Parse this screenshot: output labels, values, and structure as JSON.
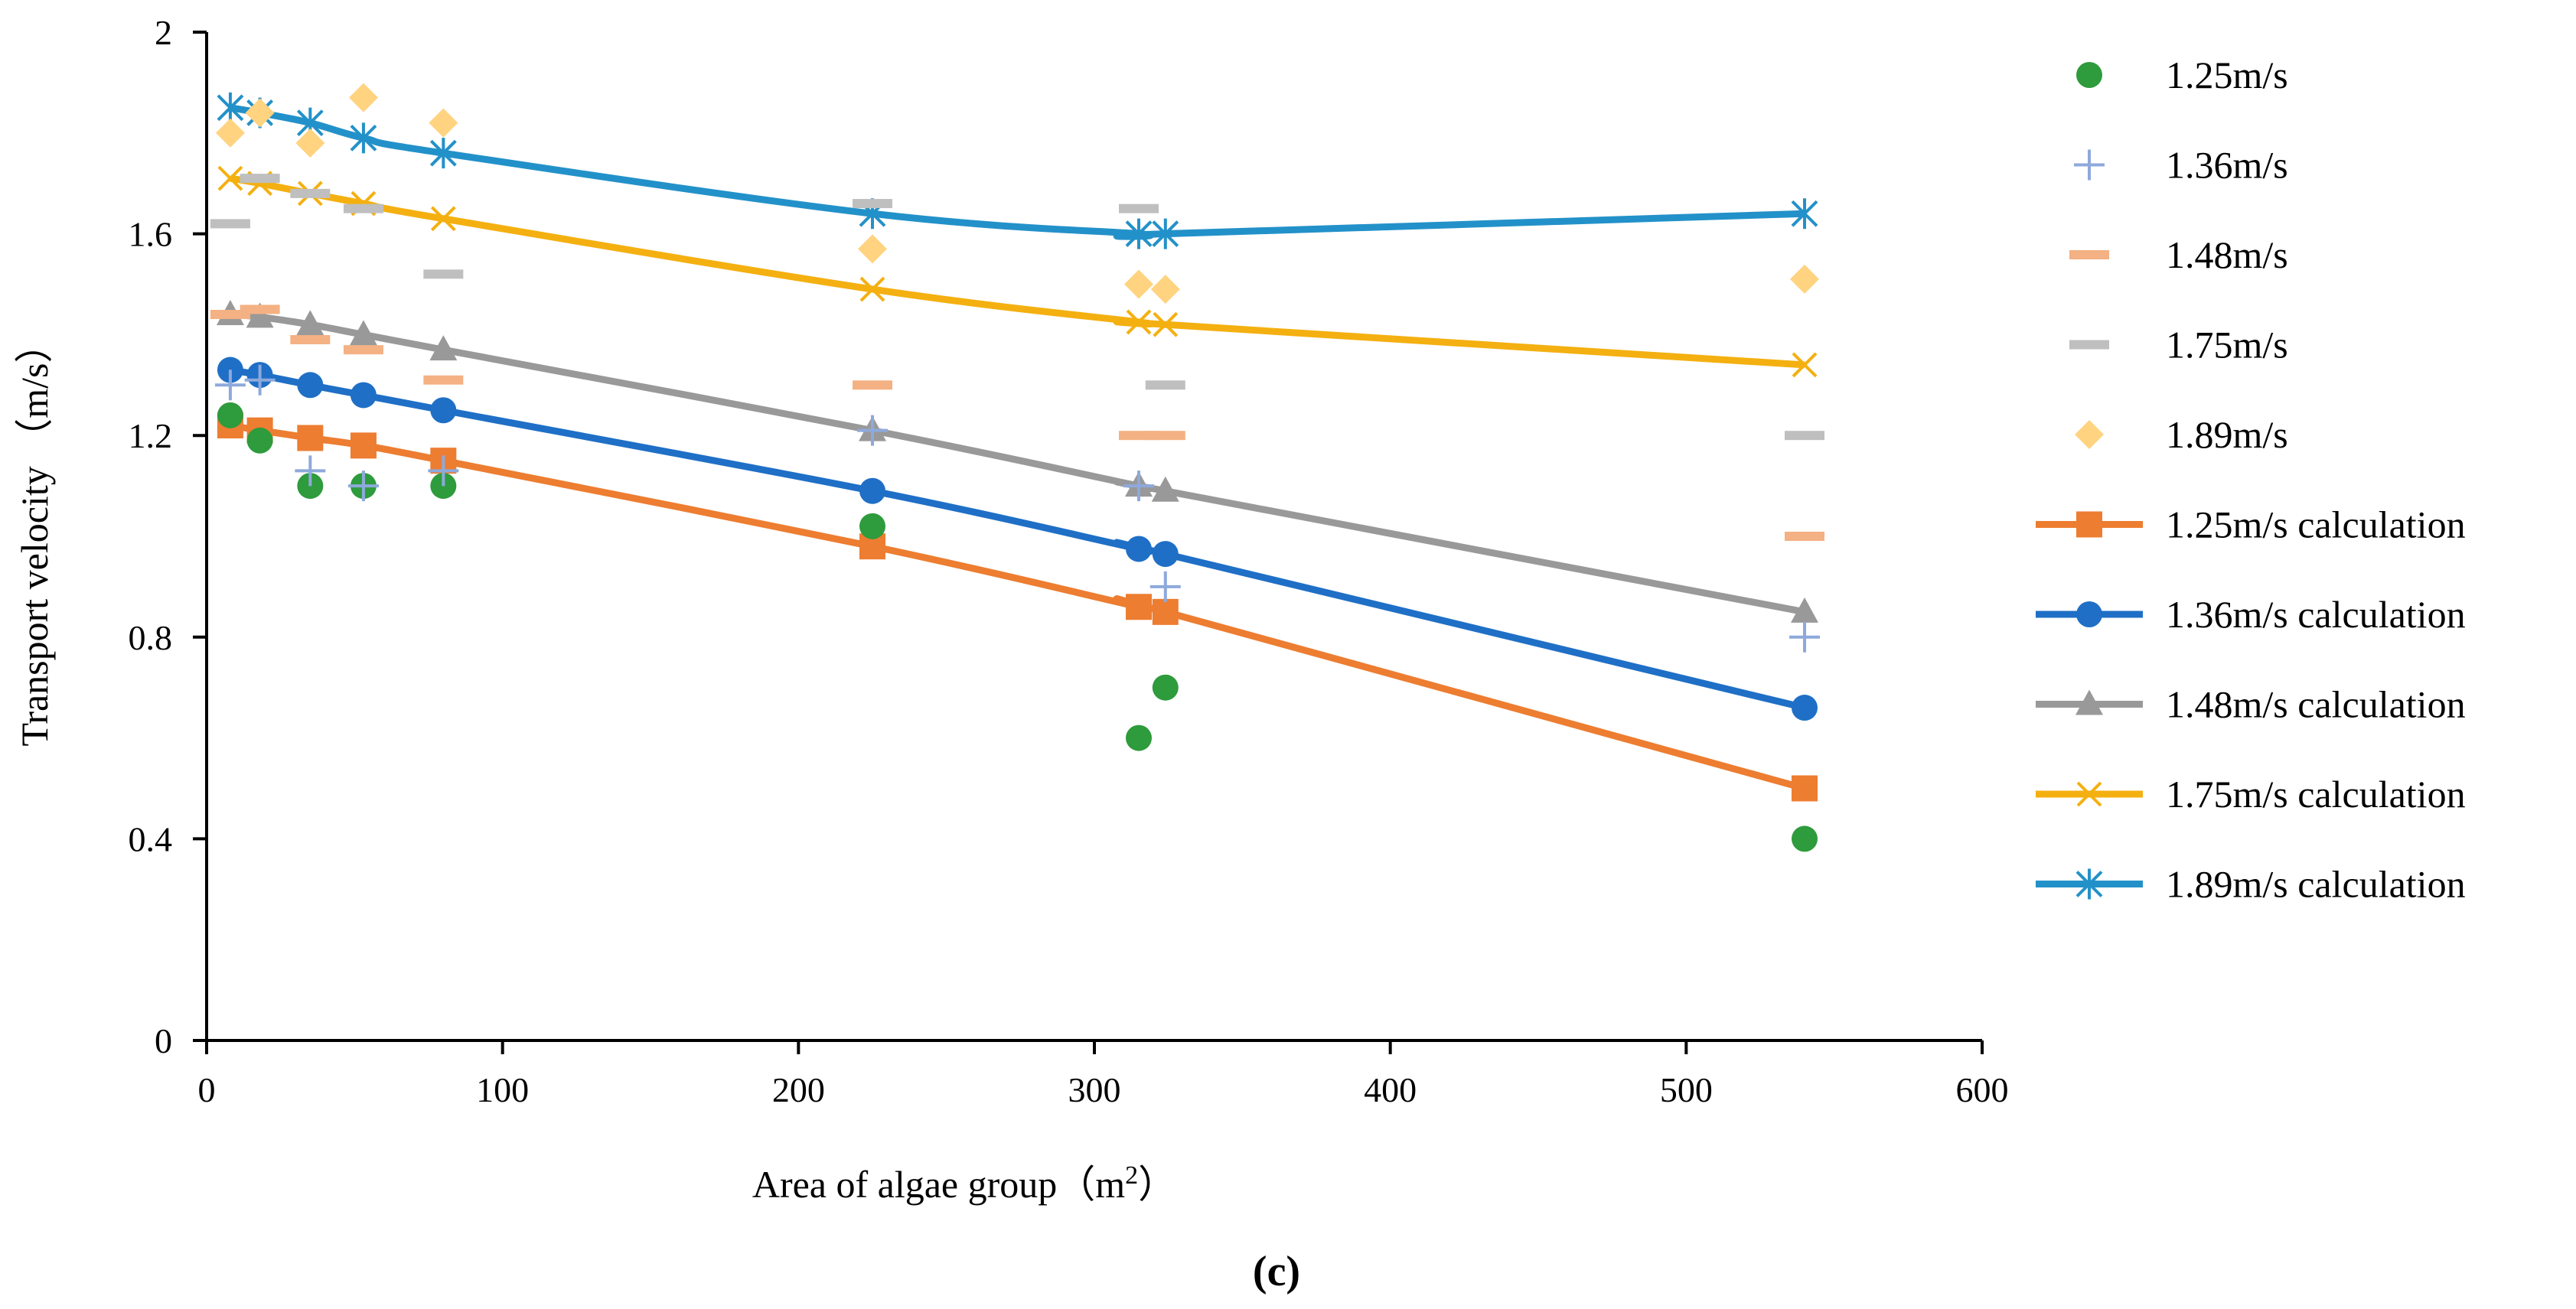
{
  "chart_data": {
    "type": "scatter",
    "xlabel": "Area of algae group（m²）",
    "xlabel_main": "Area of algae group（m",
    "xlabel_sup": "2",
    "xlabel_close": "）",
    "ylabel": "Transport velocity （m/s）",
    "panel_label": "(c)",
    "xlim": [
      0,
      600
    ],
    "ylim": [
      0,
      2
    ],
    "x_ticks": [
      0,
      100,
      200,
      300,
      400,
      500,
      600
    ],
    "x_tick_labels": [
      "0",
      "100",
      "200",
      "300",
      "400",
      "500",
      "600"
    ],
    "y_ticks": [
      0,
      0.4,
      0.8,
      1.2,
      1.6,
      2
    ],
    "y_tick_labels": [
      "0",
      "0.4",
      "0.8",
      "1.2",
      "1.6",
      "2"
    ],
    "legend_position": "right",
    "series": [
      {
        "name": "1.25m/s",
        "kind": "scatter",
        "marker": "circle",
        "color": "#2e9b3c",
        "points": [
          [
            8,
            1.24
          ],
          [
            18,
            1.19
          ],
          [
            35,
            1.1
          ],
          [
            53,
            1.1
          ],
          [
            80,
            1.1
          ],
          [
            225,
            1.02
          ],
          [
            315,
            0.6
          ],
          [
            324,
            0.7
          ],
          [
            540,
            0.4
          ]
        ]
      },
      {
        "name": "1.36m/s",
        "kind": "scatter",
        "marker": "plus",
        "color": "#8ea9db",
        "points": [
          [
            8,
            1.3
          ],
          [
            18,
            1.31
          ],
          [
            35,
            1.13
          ],
          [
            53,
            1.1
          ],
          [
            80,
            1.13
          ],
          [
            225,
            1.21
          ],
          [
            315,
            1.1
          ],
          [
            324,
            0.9
          ],
          [
            540,
            0.8
          ]
        ]
      },
      {
        "name": "1.48m/s",
        "kind": "scatter",
        "marker": "dash",
        "color": "#f4b183",
        "points": [
          [
            8,
            1.44
          ],
          [
            18,
            1.45
          ],
          [
            35,
            1.39
          ],
          [
            53,
            1.37
          ],
          [
            80,
            1.31
          ],
          [
            225,
            1.3
          ],
          [
            315,
            1.2
          ],
          [
            324,
            1.2
          ],
          [
            540,
            1.0
          ]
        ]
      },
      {
        "name": "1.75m/s",
        "kind": "scatter",
        "marker": "dash",
        "color": "#bfbfbf",
        "points": [
          [
            8,
            1.62
          ],
          [
            18,
            1.71
          ],
          [
            35,
            1.68
          ],
          [
            53,
            1.65
          ],
          [
            80,
            1.52
          ],
          [
            225,
            1.66
          ],
          [
            315,
            1.65
          ],
          [
            324,
            1.3
          ],
          [
            540,
            1.2
          ]
        ]
      },
      {
        "name": "1.89m/s",
        "kind": "scatter",
        "marker": "diamond",
        "color": "#ffd380",
        "points": [
          [
            8,
            1.8
          ],
          [
            18,
            1.84
          ],
          [
            35,
            1.78
          ],
          [
            53,
            1.87
          ],
          [
            80,
            1.82
          ],
          [
            225,
            1.57
          ],
          [
            315,
            1.5
          ],
          [
            324,
            1.49
          ],
          [
            540,
            1.51
          ]
        ]
      },
      {
        "name": "1.25m/s calculation",
        "kind": "line",
        "marker": "square",
        "color": "#ed7d31",
        "points": [
          [
            8,
            1.22
          ],
          [
            18,
            1.21
          ],
          [
            35,
            1.195
          ],
          [
            53,
            1.18
          ],
          [
            80,
            1.15
          ],
          [
            225,
            0.98
          ],
          [
            315,
            0.86
          ],
          [
            324,
            0.85
          ],
          [
            540,
            0.5
          ]
        ]
      },
      {
        "name": "1.36m/s calculation",
        "kind": "line",
        "marker": "circle",
        "color": "#1f6fc6",
        "points": [
          [
            8,
            1.33
          ],
          [
            18,
            1.32
          ],
          [
            35,
            1.3
          ],
          [
            53,
            1.28
          ],
          [
            80,
            1.25
          ],
          [
            225,
            1.09
          ],
          [
            315,
            0.975
          ],
          [
            324,
            0.965
          ],
          [
            540,
            0.66
          ]
        ]
      },
      {
        "name": "1.48m/s calculation",
        "kind": "line",
        "marker": "triangle",
        "color": "#999999",
        "points": [
          [
            8,
            1.44
          ],
          [
            18,
            1.435
          ],
          [
            35,
            1.42
          ],
          [
            53,
            1.4
          ],
          [
            80,
            1.37
          ],
          [
            225,
            1.21
          ],
          [
            315,
            1.1
          ],
          [
            324,
            1.09
          ],
          [
            540,
            0.85
          ]
        ]
      },
      {
        "name": "1.75m/s calculation",
        "kind": "line",
        "marker": "x",
        "color": "#f4b011",
        "points": [
          [
            8,
            1.71
          ],
          [
            18,
            1.7
          ],
          [
            35,
            1.68
          ],
          [
            53,
            1.66
          ],
          [
            80,
            1.63
          ],
          [
            225,
            1.49
          ],
          [
            315,
            1.425
          ],
          [
            324,
            1.42
          ],
          [
            540,
            1.34
          ]
        ]
      },
      {
        "name": "1.89m/s calculation",
        "kind": "line",
        "marker": "star",
        "color": "#2391c9",
        "points": [
          [
            8,
            1.85
          ],
          [
            18,
            1.84
          ],
          [
            35,
            1.82
          ],
          [
            53,
            1.79
          ],
          [
            80,
            1.76
          ],
          [
            225,
            1.64
          ],
          [
            315,
            1.6
          ],
          [
            324,
            1.6
          ],
          [
            540,
            1.64
          ]
        ]
      }
    ]
  }
}
